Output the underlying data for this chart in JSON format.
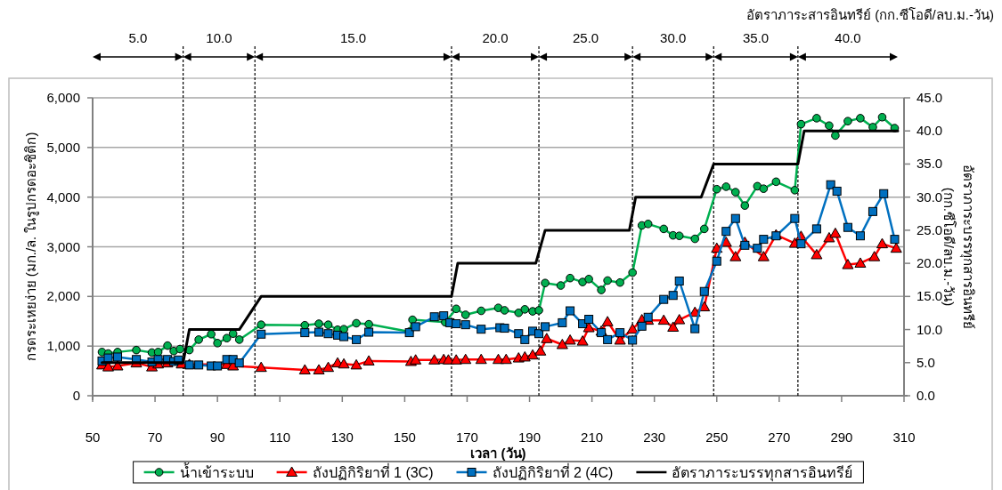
{
  "chart_data": {
    "type": "line",
    "xlabel": "เวลา (วัน)",
    "ylabel": "กรดระเหยง่าย (มก./ล. ในรูปกรดอะซิติก)",
    "y2label": "อัตราภาระบรรทุกสารอินทรีย์ (กก.ซีโอดี/ลบ.ม.-วัน)",
    "annotations": [
      "อัตราภาระสารอินทรีย์ (กก.ซีโอดี/ลบ.ม.-วัน)",
      "5.0",
      "10.0",
      "15.0",
      "20.0",
      "25.0",
      "30.0",
      "35.0",
      "40.0"
    ],
    "xlim": [
      50,
      310
    ],
    "xticks": [
      50,
      70,
      90,
      110,
      130,
      150,
      170,
      190,
      210,
      230,
      250,
      270,
      290,
      310
    ],
    "ylim": [
      0,
      6000
    ],
    "yticks": [
      0,
      {
        "value": 1000,
        "label": "1,000"
      },
      {
        "value": 2000,
        "label": "2,000"
      },
      {
        "value": 3000,
        "label": "3,000"
      },
      {
        "value": 4000,
        "label": "4,000"
      },
      {
        "value": 5000,
        "label": "5,000"
      },
      {
        "value": 6000,
        "label": "6,000"
      }
    ],
    "y2lim": [
      0,
      45
    ],
    "y2ticks": [
      {
        "value": 0,
        "label": "0.0"
      },
      {
        "value": 5,
        "label": "5.0"
      },
      {
        "value": 10,
        "label": "10.0"
      },
      {
        "value": 15,
        "label": "15.0"
      },
      {
        "value": 20,
        "label": "20.0"
      },
      {
        "value": 25,
        "label": "25.0"
      },
      {
        "value": 30,
        "label": "30.0"
      },
      {
        "value": 35,
        "label": "35.0"
      },
      {
        "value": 40,
        "label": "40.0"
      },
      {
        "value": 45,
        "label": "45.0"
      }
    ],
    "grid": "y",
    "legend": "bottom",
    "line_style": "solid",
    "series": [
      {
        "name": "น้ำเข้าระบบ",
        "color": "#00b050",
        "marker": "circle",
        "x": [
          53,
          55,
          58,
          64,
          69,
          71,
          74,
          76,
          78,
          81,
          84,
          88,
          90,
          93,
          95,
          97,
          104,
          118,
          122.5,
          125.5,
          128.5,
          130.5,
          134.5,
          138.5,
          151.5,
          152.5,
          163,
          166.5,
          169.5,
          174.5,
          180,
          182,
          186.5,
          188.5,
          191,
          193,
          195,
          200,
          203,
          207,
          209,
          213,
          215,
          219,
          223,
          226,
          228,
          233,
          236,
          238,
          243,
          246,
          250,
          253,
          256,
          259,
          263,
          265,
          269,
          275,
          277,
          282,
          286,
          288,
          292,
          296,
          300,
          303,
          307
        ],
        "values": [
          880,
          850,
          880,
          920,
          870,
          880,
          1010,
          900,
          940,
          920,
          1130,
          1240,
          1060,
          1160,
          1250,
          1130,
          1430,
          1420,
          1450,
          1430,
          1330,
          1340,
          1460,
          1440,
          1290,
          1530,
          1480,
          1750,
          1630,
          1710,
          1770,
          1720,
          1670,
          1740,
          1700,
          1720,
          2270,
          2220,
          2370,
          2290,
          2350,
          2130,
          2320,
          2280,
          2480,
          3430,
          3460,
          3360,
          3230,
          3220,
          3160,
          3360,
          4160,
          4210,
          4100,
          3830,
          4220,
          4170,
          4310,
          4140,
          5470,
          5590,
          5440,
          5240,
          5530,
          5590,
          5410,
          5610,
          5390
        ]
      },
      {
        "name": "ถังปฏิกิริยาที่ 1 (3C)",
        "color": "#ff0000",
        "marker": "triangle",
        "x": [
          53,
          55,
          58,
          64,
          69,
          71,
          74,
          78.5,
          81,
          93,
          95,
          104,
          118,
          122.5,
          125.5,
          128.5,
          130.5,
          134.5,
          138.5,
          152,
          153.5,
          159.5,
          162.5,
          164,
          166.5,
          169.5,
          174.5,
          180,
          182.5,
          186.5,
          188.5,
          191,
          193.5,
          195.5,
          200.5,
          203,
          207,
          209,
          213,
          215,
          219,
          223,
          226,
          228,
          233,
          236,
          238,
          243,
          246,
          250,
          253,
          256,
          259,
          265,
          269,
          275,
          277,
          282,
          286,
          288,
          292,
          296,
          300.5,
          303,
          307.5
        ],
        "values": [
          620,
          580,
          600,
          660,
          580,
          640,
          660,
          640,
          630,
          630,
          600,
          570,
          520,
          520,
          570,
          660,
          640,
          620,
          700,
          690,
          720,
          720,
          730,
          720,
          720,
          730,
          730,
          730,
          730,
          760,
          780,
          820,
          900,
          1150,
          1030,
          1120,
          1100,
          1370,
          1300,
          1490,
          1120,
          1340,
          1530,
          1520,
          1520,
          1380,
          1530,
          1680,
          1790,
          2970,
          3090,
          2800,
          3090,
          2800,
          3240,
          3070,
          3210,
          2840,
          3180,
          3270,
          2640,
          2670,
          2800,
          3060,
          2970
        ]
      },
      {
        "name": "ถังปฏิกิริยาที่ 2 (4C)",
        "color": "#0070c0",
        "marker": "square",
        "x": [
          53,
          55,
          58,
          64,
          69,
          71,
          74,
          76,
          77.5,
          81,
          84,
          88,
          90,
          93,
          95,
          97,
          104,
          118,
          122.5,
          125.5,
          128.5,
          130.5,
          134.5,
          138.5,
          151.5,
          153.5,
          159.5,
          162.5,
          164.5,
          166.5,
          169.5,
          174.5,
          180.5,
          182,
          186.5,
          188.5,
          191,
          193,
          195,
          200.5,
          203,
          207,
          209,
          213,
          215,
          219,
          223,
          226,
          228,
          233,
          236,
          238,
          243,
          246,
          250,
          253,
          256,
          259,
          263,
          265,
          269,
          275,
          277,
          282,
          286.5,
          288.5,
          292,
          296,
          300,
          303.5,
          307
        ],
        "values": [
          700,
          760,
          780,
          730,
          680,
          730,
          730,
          690,
          720,
          620,
          620,
          600,
          600,
          730,
          730,
          660,
          1240,
          1270,
          1280,
          1250,
          1220,
          1190,
          1130,
          1280,
          1270,
          1390,
          1590,
          1610,
          1470,
          1450,
          1430,
          1340,
          1370,
          1360,
          1250,
          1130,
          1300,
          1250,
          1390,
          1470,
          1710,
          1450,
          1540,
          1270,
          1130,
          1270,
          1120,
          1400,
          1580,
          1940,
          2020,
          2310,
          1350,
          2100,
          2710,
          3310,
          3570,
          3030,
          2970,
          3150,
          3220,
          3570,
          3060,
          3360,
          4250,
          4120,
          3390,
          3220,
          3710,
          4070,
          3150
        ]
      },
      {
        "name": "อัตราภาระบรรทุกสารอินทรีย์",
        "color": "#000000",
        "marker": "none",
        "axis": "y2",
        "x": [
          53,
          79,
          81,
          97,
          104,
          165,
          167,
          192,
          195,
          222,
          224,
          245,
          249,
          276,
          278,
          308
        ],
        "values": [
          5,
          5,
          10,
          10,
          15,
          15,
          20,
          20,
          25,
          25,
          30,
          30,
          35,
          35,
          40,
          40
        ]
      }
    ],
    "ref_lines": [
      {
        "axis": "x",
        "value": 79,
        "line_style": "dashed"
      },
      {
        "axis": "x",
        "value": 102,
        "line_style": "dashed"
      },
      {
        "axis": "x",
        "value": 165,
        "line_style": "dashed"
      },
      {
        "axis": "x",
        "value": 193,
        "line_style": "dashed"
      },
      {
        "axis": "x",
        "value": 223,
        "line_style": "dashed"
      },
      {
        "axis": "x",
        "value": 249,
        "line_style": "dashed"
      },
      {
        "axis": "x",
        "value": 276,
        "line_style": "dashed"
      }
    ]
  }
}
